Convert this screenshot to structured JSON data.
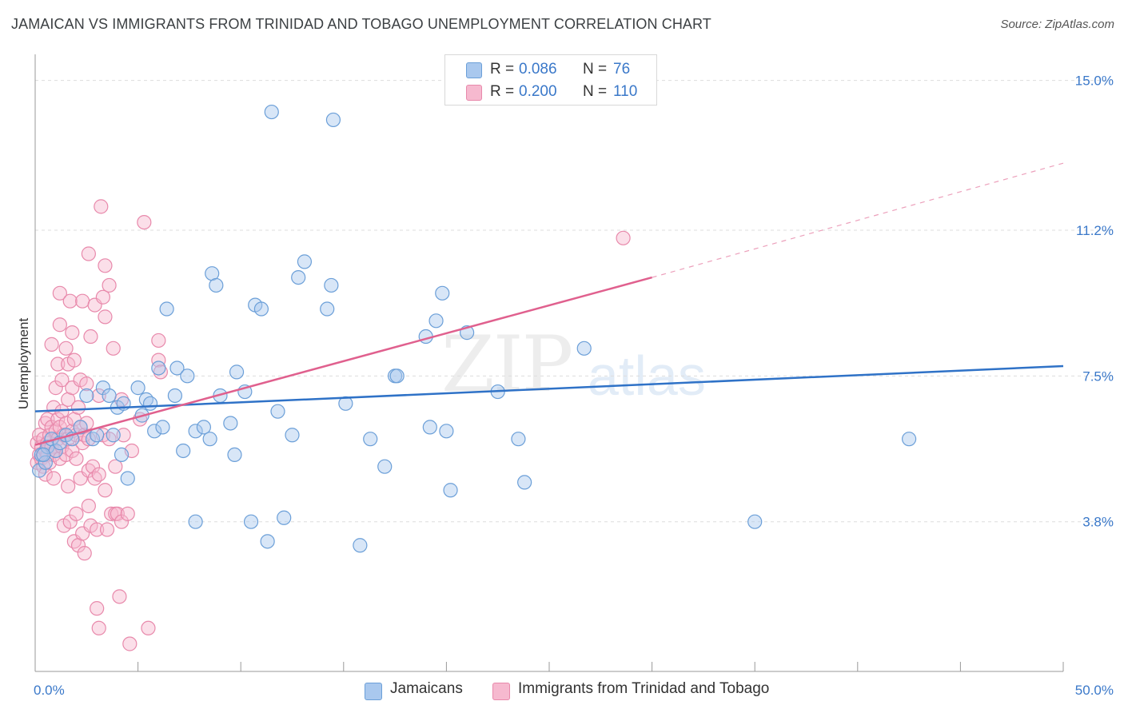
{
  "header": {
    "title": "JAMAICAN VS IMMIGRANTS FROM TRINIDAD AND TOBAGO UNEMPLOYMENT CORRELATION CHART",
    "source": "Source: ZipAtlas.com"
  },
  "watermark": {
    "zip": "ZIP",
    "atlas": "atlas"
  },
  "legend": {
    "series1": {
      "r_label": "R =",
      "r_value": "0.086",
      "n_label": "N =",
      "n_value": "76"
    },
    "series2": {
      "r_label": "R =",
      "r_value": "0.200",
      "n_label": "N =",
      "n_value": "110"
    }
  },
  "bottom_legend": {
    "series1": "Jamaicans",
    "series2": "Immigrants from Trinidad and Tobago"
  },
  "colors": {
    "blue_fill": "#a9c8ee",
    "blue_stroke": "#6b9fd8",
    "blue_line": "#2f72c7",
    "pink_fill": "#f6b9cf",
    "pink_stroke": "#e889ab",
    "pink_line": "#e0608e",
    "grid": "#dddddd",
    "tick_text": "#3a78c9"
  },
  "chart_data": {
    "type": "scatter",
    "title": "JAMAICAN VS IMMIGRANTS FROM TRINIDAD AND TOBAGO UNEMPLOYMENT CORRELATION CHART",
    "xlabel": "",
    "ylabel": "Unemployment",
    "xlim": [
      0,
      50
    ],
    "ylim": [
      0,
      15.5
    ],
    "x_tick_labels": [
      "0.0%",
      "50.0%"
    ],
    "y_ticks": [
      3.8,
      7.5,
      11.2,
      15.0
    ],
    "y_tick_labels": [
      "3.8%",
      "7.5%",
      "11.2%",
      "15.0%"
    ],
    "grid": true,
    "series": [
      {
        "name": "Jamaicans",
        "r": 0.086,
        "n": 76,
        "trend": {
          "x": [
            0,
            50
          ],
          "y": [
            6.6,
            7.75
          ],
          "dashed_from": null
        },
        "points": [
          [
            0.2,
            5.1
          ],
          [
            0.3,
            5.5
          ],
          [
            0.5,
            5.3
          ],
          [
            0.6,
            5.7
          ],
          [
            0.8,
            5.9
          ],
          [
            1.0,
            5.6
          ],
          [
            1.2,
            5.8
          ],
          [
            1.5,
            6.0
          ],
          [
            1.8,
            5.9
          ],
          [
            2.2,
            6.2
          ],
          [
            2.5,
            7.0
          ],
          [
            2.8,
            5.9
          ],
          [
            3.0,
            6.0
          ],
          [
            3.3,
            7.2
          ],
          [
            3.6,
            7.0
          ],
          [
            3.8,
            6.0
          ],
          [
            4.0,
            6.7
          ],
          [
            4.2,
            5.5
          ],
          [
            4.3,
            6.8
          ],
          [
            4.5,
            4.9
          ],
          [
            5.0,
            7.2
          ],
          [
            5.2,
            6.5
          ],
          [
            5.4,
            6.9
          ],
          [
            5.6,
            6.8
          ],
          [
            5.8,
            6.1
          ],
          [
            6.0,
            7.7
          ],
          [
            6.2,
            6.2
          ],
          [
            6.4,
            9.2
          ],
          [
            6.8,
            7.0
          ],
          [
            6.9,
            7.7
          ],
          [
            7.2,
            5.6
          ],
          [
            7.4,
            7.5
          ],
          [
            7.8,
            3.8
          ],
          [
            7.8,
            6.1
          ],
          [
            8.2,
            6.2
          ],
          [
            8.5,
            5.9
          ],
          [
            8.6,
            10.1
          ],
          [
            8.8,
            9.8
          ],
          [
            9.0,
            7.0
          ],
          [
            9.5,
            6.3
          ],
          [
            9.7,
            5.5
          ],
          [
            9.8,
            7.6
          ],
          [
            10.2,
            7.1
          ],
          [
            10.5,
            3.8
          ],
          [
            10.7,
            9.3
          ],
          [
            11.0,
            9.2
          ],
          [
            11.3,
            3.3
          ],
          [
            11.5,
            14.2
          ],
          [
            11.8,
            6.6
          ],
          [
            12.1,
            3.9
          ],
          [
            12.5,
            6.0
          ],
          [
            12.8,
            10.0
          ],
          [
            13.1,
            10.4
          ],
          [
            14.2,
            9.2
          ],
          [
            14.4,
            9.8
          ],
          [
            14.5,
            14.0
          ],
          [
            15.1,
            6.8
          ],
          [
            15.8,
            3.2
          ],
          [
            16.3,
            5.9
          ],
          [
            17.0,
            5.2
          ],
          [
            17.5,
            7.5
          ],
          [
            17.6,
            7.5
          ],
          [
            19.0,
            8.5
          ],
          [
            19.2,
            6.2
          ],
          [
            19.5,
            8.9
          ],
          [
            19.8,
            9.6
          ],
          [
            20.0,
            6.1
          ],
          [
            20.2,
            4.6
          ],
          [
            21.0,
            8.6
          ],
          [
            22.5,
            7.1
          ],
          [
            23.5,
            5.9
          ],
          [
            23.8,
            4.8
          ],
          [
            26.7,
            8.2
          ],
          [
            35.0,
            3.8
          ],
          [
            42.5,
            5.9
          ],
          [
            0.4,
            5.5
          ]
        ]
      },
      {
        "name": "Immigrants from Trinidad and Tobago",
        "r": 0.2,
        "n": 110,
        "trend": {
          "x": [
            0,
            30
          ],
          "y": [
            5.75,
            10.0
          ],
          "dashed_to_x": 50,
          "dashed_to_y": 12.9
        },
        "points": [
          [
            0.1,
            5.3
          ],
          [
            0.1,
            5.8
          ],
          [
            0.2,
            5.5
          ],
          [
            0.2,
            6.0
          ],
          [
            0.3,
            5.4
          ],
          [
            0.3,
            5.7
          ],
          [
            0.4,
            5.2
          ],
          [
            0.4,
            5.9
          ],
          [
            0.5,
            5.6
          ],
          [
            0.5,
            6.3
          ],
          [
            0.5,
            5.0
          ],
          [
            0.6,
            5.8
          ],
          [
            0.6,
            6.4
          ],
          [
            0.6,
            5.5
          ],
          [
            0.7,
            6.0
          ],
          [
            0.7,
            5.3
          ],
          [
            0.8,
            6.2
          ],
          [
            0.8,
            5.7
          ],
          [
            0.8,
            8.3
          ],
          [
            0.9,
            6.7
          ],
          [
            0.9,
            5.5
          ],
          [
            0.9,
            4.9
          ],
          [
            1.0,
            7.2
          ],
          [
            1.0,
            6.1
          ],
          [
            1.0,
            5.6
          ],
          [
            1.1,
            6.4
          ],
          [
            1.1,
            5.9
          ],
          [
            1.1,
            7.8
          ],
          [
            1.2,
            6.2
          ],
          [
            1.2,
            8.8
          ],
          [
            1.2,
            9.6
          ],
          [
            1.2,
            5.4
          ],
          [
            1.3,
            6.6
          ],
          [
            1.3,
            7.4
          ],
          [
            1.3,
            5.7
          ],
          [
            1.4,
            3.7
          ],
          [
            1.4,
            6.0
          ],
          [
            1.5,
            8.2
          ],
          [
            1.5,
            6.3
          ],
          [
            1.5,
            5.5
          ],
          [
            1.6,
            6.9
          ],
          [
            1.6,
            7.8
          ],
          [
            1.6,
            4.7
          ],
          [
            1.6,
            5.9
          ],
          [
            1.7,
            9.4
          ],
          [
            1.7,
            3.8
          ],
          [
            1.8,
            6.1
          ],
          [
            1.8,
            7.2
          ],
          [
            1.8,
            8.6
          ],
          [
            1.8,
            5.6
          ],
          [
            1.9,
            3.3
          ],
          [
            1.9,
            6.4
          ],
          [
            1.9,
            7.9
          ],
          [
            2.0,
            6.0
          ],
          [
            2.0,
            4.0
          ],
          [
            2.0,
            5.4
          ],
          [
            2.1,
            3.2
          ],
          [
            2.1,
            6.7
          ],
          [
            2.2,
            7.4
          ],
          [
            2.2,
            4.9
          ],
          [
            2.2,
            6.2
          ],
          [
            2.3,
            5.8
          ],
          [
            2.3,
            3.5
          ],
          [
            2.3,
            9.4
          ],
          [
            2.4,
            3.0
          ],
          [
            2.4,
            6.0
          ],
          [
            2.5,
            6.3
          ],
          [
            2.5,
            7.3
          ],
          [
            2.6,
            4.2
          ],
          [
            2.6,
            5.1
          ],
          [
            2.6,
            10.6
          ],
          [
            2.6,
            5.9
          ],
          [
            2.7,
            8.5
          ],
          [
            2.7,
            3.7
          ],
          [
            2.8,
            5.2
          ],
          [
            2.9,
            9.3
          ],
          [
            2.9,
            4.9
          ],
          [
            3.0,
            3.6
          ],
          [
            3.0,
            1.6
          ],
          [
            3.1,
            7.0
          ],
          [
            3.1,
            5.0
          ],
          [
            3.2,
            11.8
          ],
          [
            3.3,
            9.5
          ],
          [
            3.3,
            6.0
          ],
          [
            3.4,
            10.3
          ],
          [
            3.4,
            4.6
          ],
          [
            3.4,
            9.0
          ],
          [
            3.5,
            3.6
          ],
          [
            3.6,
            9.8
          ],
          [
            3.6,
            5.9
          ],
          [
            3.7,
            4.0
          ],
          [
            3.8,
            8.2
          ],
          [
            3.9,
            4.0
          ],
          [
            3.9,
            5.2
          ],
          [
            4.0,
            4.0
          ],
          [
            4.1,
            1.9
          ],
          [
            4.2,
            3.8
          ],
          [
            4.2,
            6.9
          ],
          [
            4.3,
            6.0
          ],
          [
            4.5,
            4.0
          ],
          [
            4.6,
            0.7
          ],
          [
            4.7,
            5.6
          ],
          [
            5.1,
            6.4
          ],
          [
            5.3,
            11.4
          ],
          [
            5.5,
            1.1
          ],
          [
            6.0,
            8.4
          ],
          [
            6.0,
            7.9
          ],
          [
            6.1,
            7.6
          ],
          [
            28.6,
            11.0
          ],
          [
            3.1,
            1.1
          ]
        ]
      }
    ]
  }
}
